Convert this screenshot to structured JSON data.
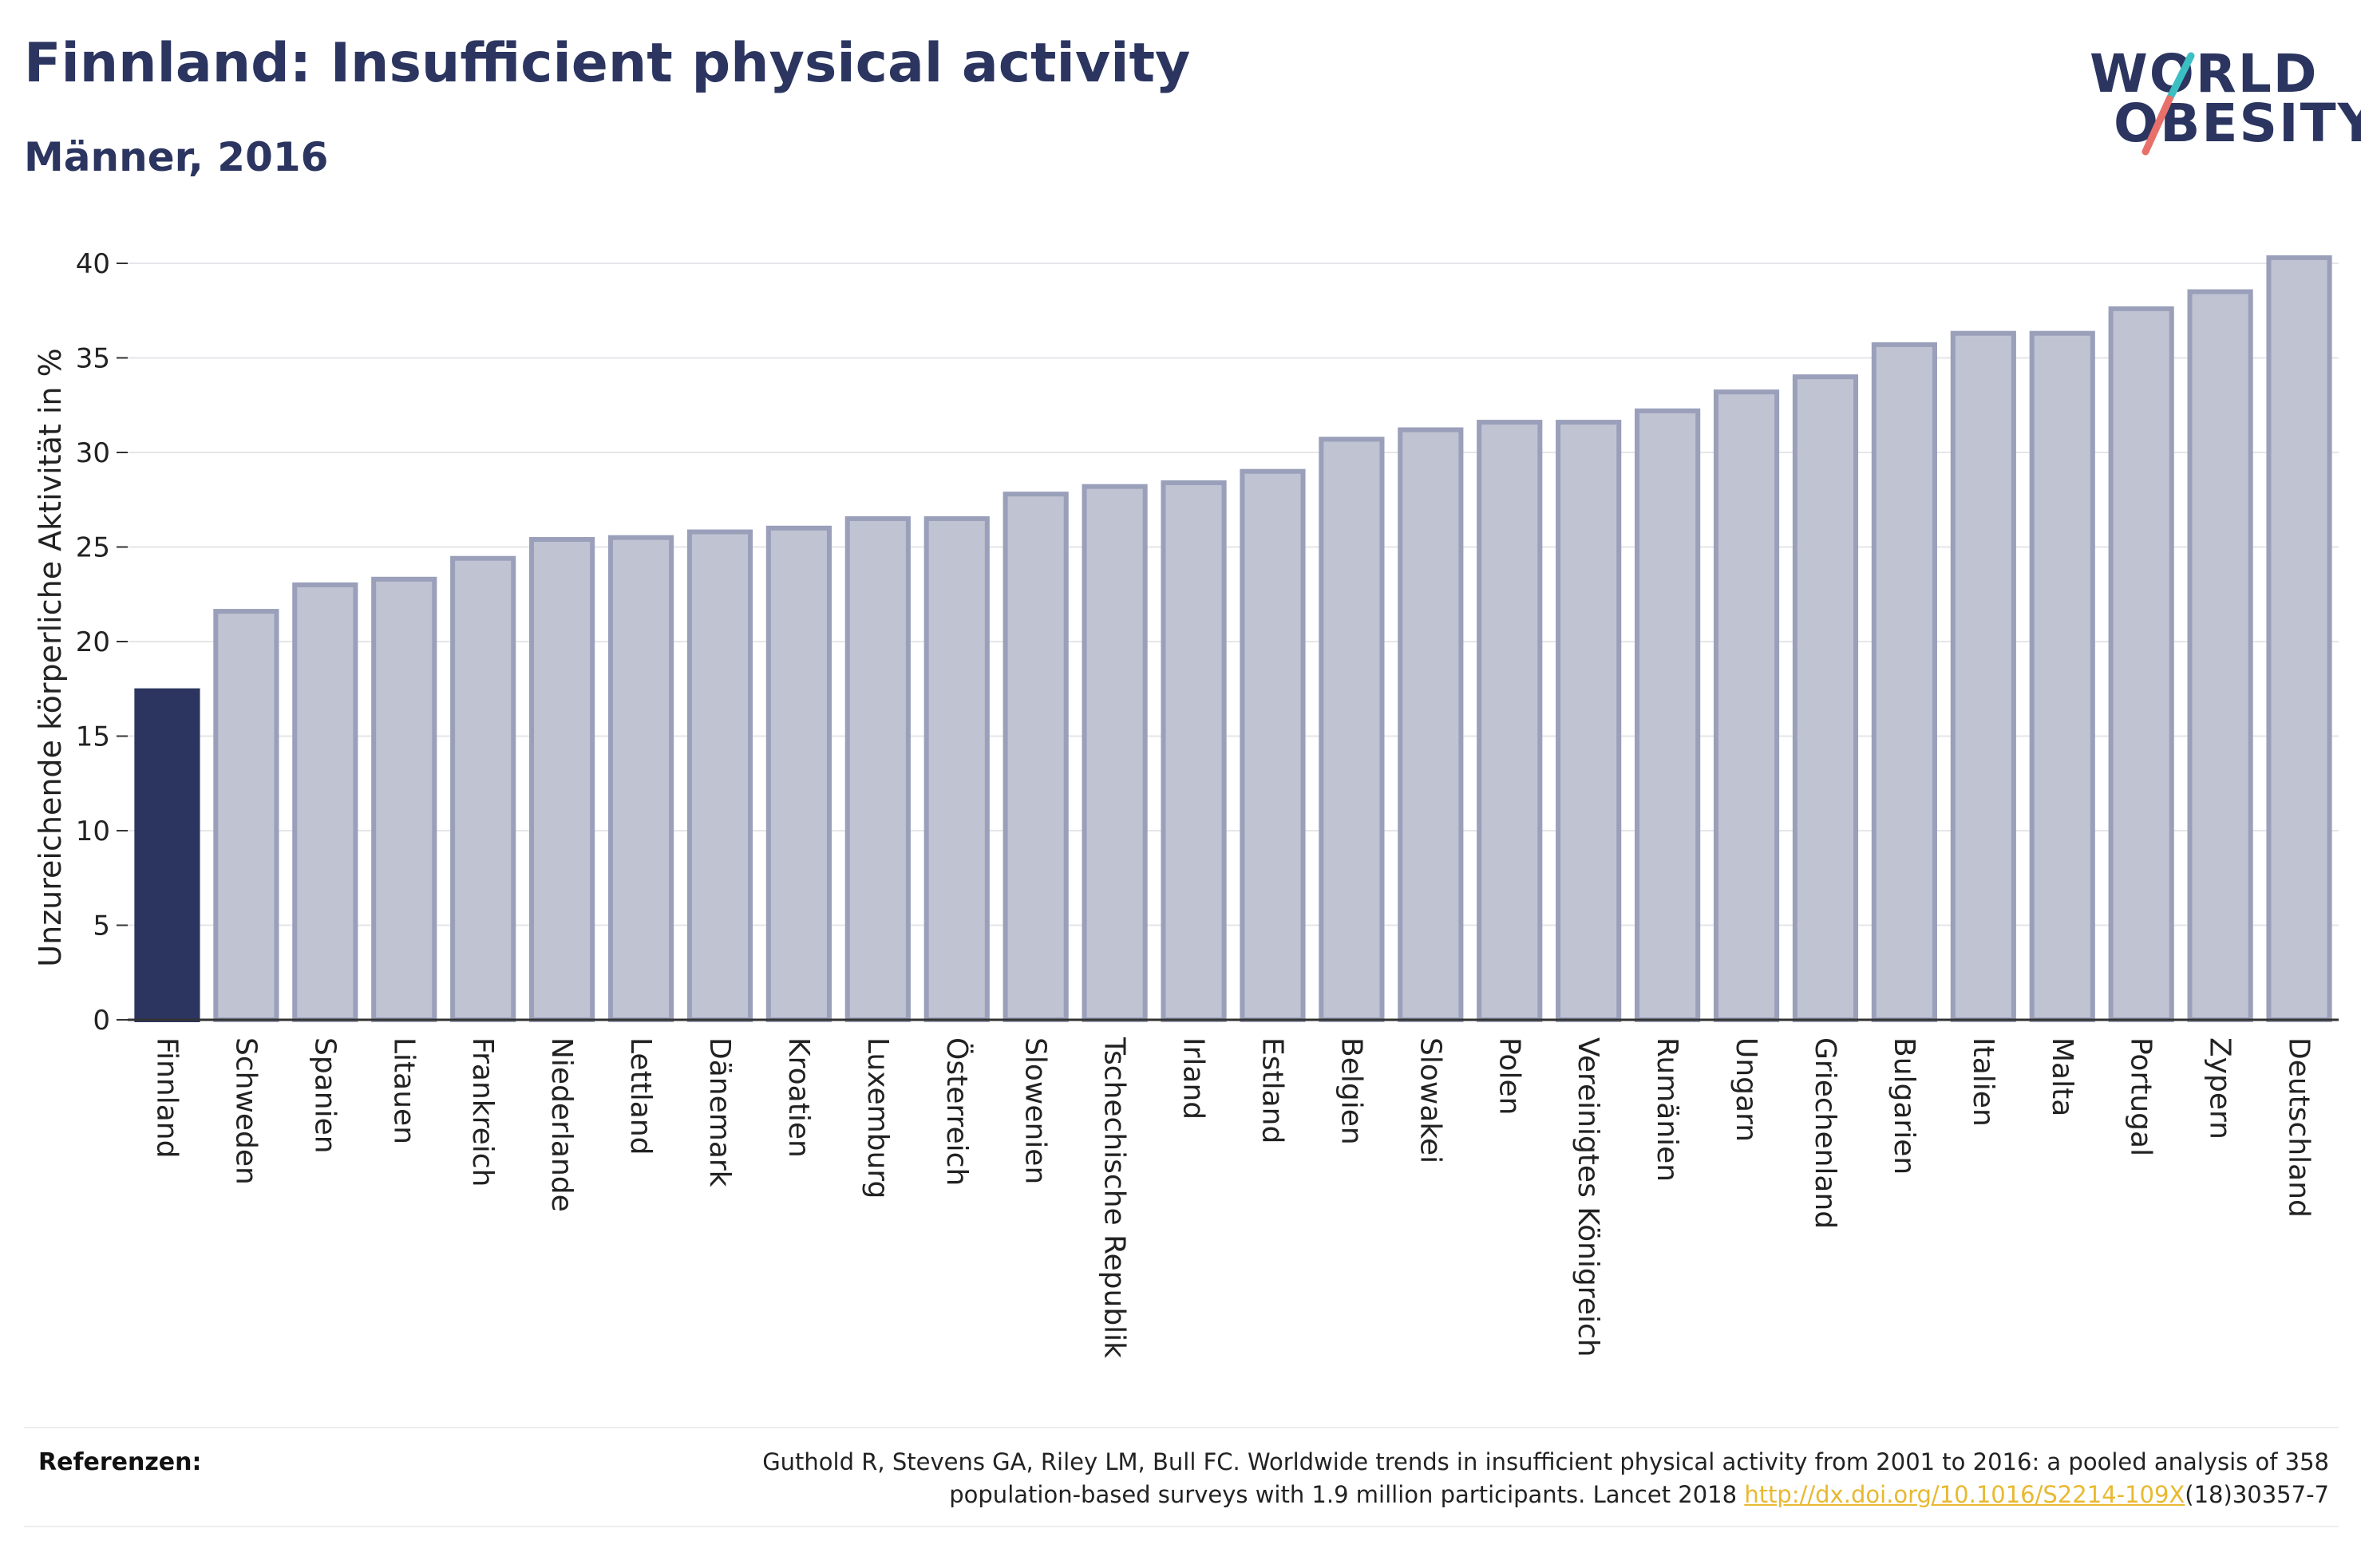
{
  "header": {
    "title": "Finnland: Insufficient physical activity",
    "subtitle": "Männer, 2016"
  },
  "logo": {
    "line1": "WORLD",
    "line2": "OBESITY",
    "colors": {
      "text": "#2b3560",
      "slash_top": "#3bbfc3",
      "slash_bottom": "#e8706a"
    }
  },
  "colors": {
    "highlight_bar": "#2b3560",
    "other_bar_fill": "#c0c3d2",
    "other_bar_stroke": "#9a9fba",
    "grid": "#e6e6ea",
    "axis": "#333333"
  },
  "chart_data": {
    "type": "bar",
    "title": "Finnland: Insufficient physical activity",
    "subtitle": "Männer, 2016",
    "xlabel": "",
    "ylabel": "Unzureichende körperliche Aktivität in %",
    "ylim": [
      0,
      40
    ],
    "yticks": [
      0,
      5,
      10,
      15,
      20,
      25,
      30,
      35,
      40
    ],
    "grid": true,
    "highlight": "Finnland",
    "categories": [
      "Finnland",
      "Schweden",
      "Spanien",
      "Litauen",
      "Frankreich",
      "Niederlande",
      "Lettland",
      "Dänemark",
      "Kroatien",
      "Luxemburg",
      "Österreich",
      "Slowenien",
      "Tschechische Republik",
      "Irland",
      "Estland",
      "Belgien",
      "Slowakei",
      "Polen",
      "Vereinigtes Königreich",
      "Rumänien",
      "Ungarn",
      "Griechenland",
      "Bulgarien",
      "Italien",
      "Malta",
      "Portugal",
      "Zypern",
      "Deutschland"
    ],
    "values": [
      17.4,
      21.6,
      23.0,
      23.3,
      24.4,
      25.4,
      25.5,
      25.8,
      26.0,
      26.5,
      26.5,
      27.8,
      28.2,
      28.4,
      29.0,
      30.7,
      31.2,
      31.6,
      31.6,
      32.2,
      33.2,
      34.0,
      35.7,
      36.3,
      36.3,
      37.6,
      38.5,
      40.3
    ]
  },
  "footer": {
    "label": "Referenzen:",
    "text_1": "Guthold R, Stevens GA, Riley LM, Bull FC. Worldwide trends in insufficient physical activity from 2001 to 2016: a pooled analysis of 358",
    "text_2": "population-based surveys with 1.9 million participants. Lancet 2018 ",
    "link": "http://dx.doi.org/10.1016/S2214-109X",
    "text_3": "(18)30357-7"
  }
}
